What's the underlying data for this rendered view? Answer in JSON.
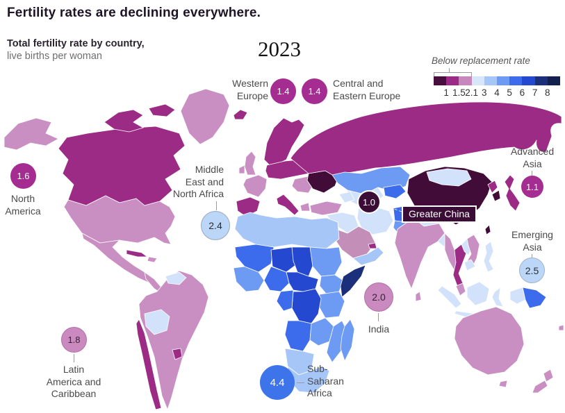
{
  "header": {
    "title": "Fertility rates are declining everywhere.",
    "subtitle_bold": "Total fertility rate by country,",
    "subtitle_light": "live births per woman",
    "year": "2023"
  },
  "legend": {
    "label": "Below replacement rate",
    "ticks": [
      "1",
      "1.5",
      "2.1",
      "3",
      "4",
      "5",
      "6",
      "7",
      "8"
    ],
    "colors": [
      "#470e3e",
      "#9c2b85",
      "#c787bd",
      "#d8e6fb",
      "#a5c6f7",
      "#6d9af3",
      "#3c6ceb",
      "#2448cf",
      "#1b2f7a",
      "#13204e"
    ]
  },
  "regions": [
    {
      "id": "western-europe",
      "label": "Western\nEurope",
      "value": "1.4",
      "badge_bg": "#a52c90",
      "badge_text": "#ffffff",
      "badge_border": "none"
    },
    {
      "id": "central-eastern-europe",
      "label": "Central and\nEastern Europe",
      "value": "1.4",
      "badge_bg": "#a52c90",
      "badge_text": "#ffffff",
      "badge_border": "none"
    },
    {
      "id": "north-america",
      "label": "North\nAmerica",
      "value": "1.6",
      "badge_bg": "#a52c90",
      "badge_text": "#ffffff",
      "badge_border": "none"
    },
    {
      "id": "middle-east-north-africa",
      "label": "Middle\nEast and\nNorth Africa",
      "value": "2.4",
      "badge_bg": "#bcd6f8",
      "badge_text": "#2d2d2d",
      "badge_border": "1px solid #98a8bc"
    },
    {
      "id": "greater-china",
      "label": "Greater China",
      "value": "1.0",
      "badge_bg": "#3b0d36",
      "badge_text": "#ffffff",
      "badge_border": "2px solid #ffffff"
    },
    {
      "id": "advanced-asia",
      "label": "Advanced\nAsia",
      "value": "1.1",
      "badge_bg": "#a52c90",
      "badge_text": "#ffffff",
      "badge_border": "none"
    },
    {
      "id": "emerging-asia",
      "label": "Emerging\nAsia",
      "value": "2.5",
      "badge_bg": "#bcd6f8",
      "badge_text": "#2d2d2d",
      "badge_border": "1px solid #9fb4cc"
    },
    {
      "id": "india",
      "label": "India",
      "value": "2.0",
      "badge_bg": "#ca8ac0",
      "badge_text": "#332433",
      "badge_border": "1px solid #b172a8"
    },
    {
      "id": "latin-america-caribbean",
      "label": "Latin\nAmerica and\nCaribbean",
      "value": "1.8",
      "badge_bg": "#ca8ac0",
      "badge_text": "#332433",
      "badge_border": "1px solid #b172a8"
    },
    {
      "id": "sub-saharan-africa",
      "label": "Sub-\nSaharan\nAfrica",
      "value": "4.4",
      "badge_bg": "#3e74ea",
      "badge_text": "#ffffff",
      "badge_border": "none"
    }
  ],
  "map": {
    "palette": {
      "darkplum": "#420c39",
      "magenta": "#9c2b85",
      "orchid": "#c98fc2",
      "mauve": "#c38fb8",
      "pale": "#d2e2fa",
      "light": "#a5c6f7",
      "medium": "#6d9af3",
      "royal": "#3c6ceb",
      "deep": "#2448cf",
      "navy": "#1b2f7a"
    },
    "countries": {
      "alaska": "orchid",
      "canada": "magenta",
      "arctic_islands": "magenta",
      "greenland": "orchid",
      "usa": "orchid",
      "mexico": "orchid",
      "central_america": "orchid",
      "cuba": "magenta",
      "hispaniola": "orchid",
      "south_america": "orchid",
      "bolivia": "pale",
      "guyanas": "pale",
      "chile": "magenta",
      "uruguay": "magenta",
      "iceland": "magenta",
      "uk": "orchid",
      "ireland": "orchid",
      "scandinavia": "magenta",
      "france": "orchid",
      "iberia": "magenta",
      "central_europe": "magenta",
      "italy": "magenta",
      "balkans": "orchid",
      "greece": "orchid",
      "ukraine": "darkplum",
      "russia": "magenta",
      "kazakhstan": "medium",
      "uzbek_turkmen": "pale",
      "kyrgyz_tajik": "royal",
      "turkey": "orchid",
      "caucasus": "pale",
      "syria_iraq": "pale",
      "iran": "pale",
      "afghanistan": "royal",
      "pakistan": "medium",
      "saudi_arabia": "mauve",
      "yemen_oman": "light",
      "uae_qatar": "magenta",
      "north_africa": "light",
      "mauritania_mali": "royal",
      "niger": "deep",
      "chad": "deep",
      "sudan": "medium",
      "west_africa": "medium",
      "nigeria": "royal",
      "cameroon_car": "deep",
      "ethiopia": "medium",
      "somalia": "navy",
      "kenya_tanzania": "medium",
      "drc": "deep",
      "gabon_congo": "royal",
      "angola": "royal",
      "zambia_zimbabwe": "medium",
      "mozambique": "medium",
      "namibia_botswana": "light",
      "south_africa": "light",
      "madagascar": "medium",
      "china": "darkplum",
      "mongolia": "pale",
      "north_korea": "magenta",
      "south_korea": "darkplum",
      "japan": "magenta",
      "taiwan": "darkplum",
      "nepal": "pale",
      "india_country": "orchid",
      "sri_lanka": "orchid",
      "bangladesh": "pale",
      "myanmar": "orchid",
      "thailand": "magenta",
      "laos": "pale",
      "vietnam": "orchid",
      "cambodia": "pale",
      "malaysia": "orchid",
      "sumatra": "pale",
      "java": "pale",
      "borneo": "pale",
      "sulawesi": "pale",
      "philippines": "pale",
      "west_new_guinea": "pale",
      "papua_new_guinea": "royal",
      "australia": "orchid",
      "tasmania": "orchid",
      "new_zealand": "orchid",
      "fiji": "orchid"
    }
  },
  "chart_data": {
    "type": "choropleth_map",
    "title": "Fertility rates are declining everywhere.",
    "subtitle": "Total fertility rate by country, live births per woman",
    "year": 2023,
    "legend": {
      "label": "Below replacement rate",
      "scale_breaks": [
        1,
        1.5,
        2.1,
        3,
        4,
        5,
        6,
        7,
        8
      ],
      "below_replacement_max": 2.1,
      "colors": [
        "#470e3e",
        "#9c2b85",
        "#c787bd",
        "#d8e6fb",
        "#a5c6f7",
        "#6d9af3",
        "#3c6ceb",
        "#2448cf",
        "#1b2f7a",
        "#13204e"
      ]
    },
    "regions": [
      {
        "name": "Western Europe",
        "value": 1.4
      },
      {
        "name": "Central and Eastern Europe",
        "value": 1.4
      },
      {
        "name": "North America",
        "value": 1.6
      },
      {
        "name": "Middle East and North Africa",
        "value": 2.4
      },
      {
        "name": "Greater China",
        "value": 1.0
      },
      {
        "name": "Advanced Asia",
        "value": 1.1
      },
      {
        "name": "Emerging Asia",
        "value": 2.5
      },
      {
        "name": "India",
        "value": 2.0
      },
      {
        "name": "Latin America and Caribbean",
        "value": 1.8
      },
      {
        "name": "Sub-Saharan Africa",
        "value": 4.4
      }
    ]
  }
}
